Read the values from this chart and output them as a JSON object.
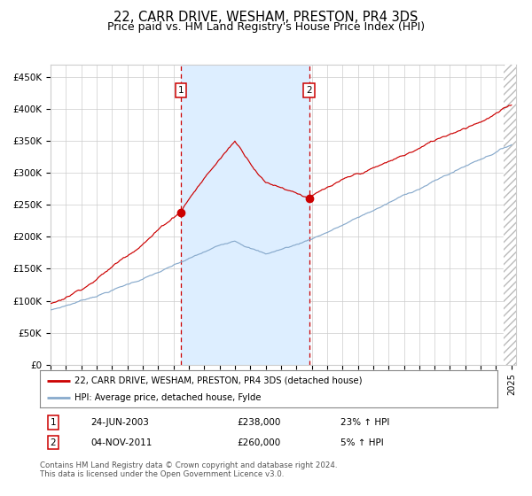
{
  "title": "22, CARR DRIVE, WESHAM, PRESTON, PR4 3DS",
  "subtitle": "Price paid vs. HM Land Registry's House Price Index (HPI)",
  "ylim": [
    0,
    470000
  ],
  "yticks": [
    0,
    50000,
    100000,
    150000,
    200000,
    250000,
    300000,
    350000,
    400000,
    450000
  ],
  "ytick_labels": [
    "£0",
    "£50K",
    "£100K",
    "£150K",
    "£200K",
    "£250K",
    "£300K",
    "£350K",
    "£400K",
    "£450K"
  ],
  "purchase1_year_float": 2003.47,
  "purchase1_price": 238000,
  "purchase1_label": "24-JUN-2003",
  "purchase2_year_float": 2011.83,
  "purchase2_price": 260000,
  "purchase2_label": "04-NOV-2011",
  "line_color_property": "#cc0000",
  "line_color_hpi": "#88aacc",
  "shade_color": "#ddeeff",
  "dashed_line_color": "#cc0000",
  "dot_color": "#cc0000",
  "legend_label1": "22, CARR DRIVE, WESHAM, PRESTON, PR4 3DS (detached house)",
  "legend_label2": "HPI: Average price, detached house, Fylde",
  "footer": "Contains HM Land Registry data © Crown copyright and database right 2024.\nThis data is licensed under the Open Government Licence v3.0.",
  "bg_color": "#ffffff",
  "grid_color": "#cccccc",
  "title_fontsize": 10.5,
  "subtitle_fontsize": 9,
  "tick_fontsize": 7.5
}
